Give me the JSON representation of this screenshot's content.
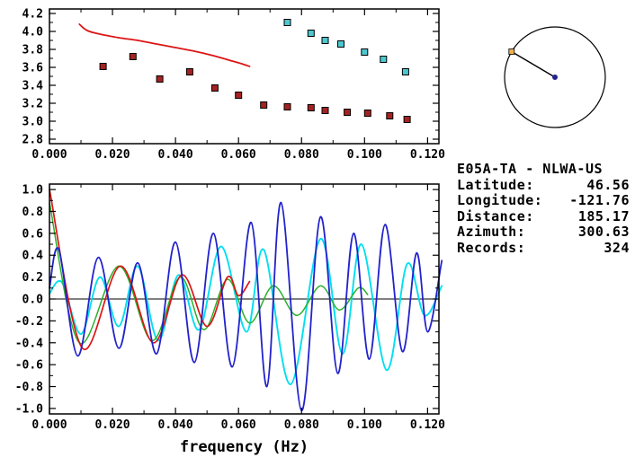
{
  "colors": {
    "red": "#dd1515",
    "maroon": "#a42222",
    "teal": "#4cc8cf",
    "blue": "#2222cc",
    "cyan": "#00dff0",
    "green": "#2ab02a",
    "orange": "#eeb04e",
    "navy": "#24248c",
    "black": "#000000"
  },
  "station_info": {
    "title": "E05A-TA - NLWA-US",
    "rows": [
      {
        "label": "Latitude:",
        "value": "46.56"
      },
      {
        "label": "Longitude:",
        "value": "-121.76"
      },
      {
        "label": "Distance:",
        "value": "185.17"
      },
      {
        "label": "Azimuth:",
        "value": "300.63"
      },
      {
        "label": "Records:",
        "value": "324"
      }
    ]
  },
  "chart_data": [
    {
      "id": "dispersion",
      "type": "scatter",
      "title": "",
      "xlabel": "",
      "ylabel": "",
      "xlim": [
        0,
        0.1236
      ],
      "ylim": [
        2.75,
        4.25
      ],
      "grid": false,
      "xticks": {
        "values": [
          0,
          0.02,
          0.04,
          0.06,
          0.08,
          0.1,
          0.12
        ],
        "labels": [
          "0.000",
          "0.020",
          "0.040",
          "0.060",
          "0.080",
          "0.100",
          "0.120"
        ]
      },
      "yticks": {
        "values": [
          2.8,
          3.0,
          3.2,
          3.4,
          3.6,
          3.8,
          4.0,
          4.2
        ],
        "labels": [
          "2.8",
          "3.0",
          "3.2",
          "3.4",
          "3.6",
          "3.8",
          "4.0",
          "4.2"
        ]
      },
      "series": [
        {
          "name": "reference-curve",
          "type": "line",
          "color_key": "red",
          "width": 1.8,
          "points": [
            [
              0.0095,
              4.08
            ],
            [
              0.012,
              4.01
            ],
            [
              0.016,
              3.97
            ],
            [
              0.022,
              3.93
            ],
            [
              0.028,
              3.9
            ],
            [
              0.034,
              3.86
            ],
            [
              0.04,
              3.82
            ],
            [
              0.046,
              3.78
            ],
            [
              0.052,
              3.73
            ],
            [
              0.057,
              3.68
            ],
            [
              0.061,
              3.64
            ],
            [
              0.0635,
              3.61
            ]
          ]
        },
        {
          "name": "group-velocity-points",
          "type": "scatter",
          "color_key": "maroon",
          "points": [
            [
              0.017,
              3.61
            ],
            [
              0.0265,
              3.72
            ],
            [
              0.035,
              3.47
            ],
            [
              0.0445,
              3.55
            ],
            [
              0.0525,
              3.37
            ],
            [
              0.06,
              3.29
            ],
            [
              0.068,
              3.18
            ],
            [
              0.0755,
              3.16
            ],
            [
              0.083,
              3.15
            ],
            [
              0.0875,
              3.12
            ],
            [
              0.0945,
              3.1
            ],
            [
              0.101,
              3.09
            ],
            [
              0.108,
              3.06
            ],
            [
              0.1135,
              3.02
            ]
          ]
        },
        {
          "name": "phase-velocity-points",
          "type": "scatter",
          "color_key": "teal",
          "points": [
            [
              0.0755,
              4.1
            ],
            [
              0.083,
              3.98
            ],
            [
              0.0875,
              3.9
            ],
            [
              0.0925,
              3.86
            ],
            [
              0.1,
              3.77
            ],
            [
              0.106,
              3.69
            ],
            [
              0.113,
              3.55
            ]
          ]
        }
      ]
    },
    {
      "id": "waveforms",
      "type": "line",
      "title": "",
      "xlabel": "frequency (Hz)",
      "ylabel": "",
      "xlim": [
        0,
        0.1236
      ],
      "ylim": [
        -1.05,
        1.05
      ],
      "grid": false,
      "xticks": {
        "values": [
          0,
          0.02,
          0.04,
          0.06,
          0.08,
          0.1,
          0.12
        ],
        "labels": [
          "0.000",
          "0.020",
          "0.040",
          "0.060",
          "0.080",
          "0.100",
          "0.120"
        ]
      },
      "yticks": {
        "values": [
          -1.0,
          -0.8,
          -0.6,
          -0.4,
          -0.2,
          0.0,
          0.2,
          0.4,
          0.6,
          0.8,
          1.0
        ],
        "labels": [
          "-1.0",
          "-0.8",
          "-0.6",
          "-0.4",
          "-0.2",
          "0.0",
          "0.2",
          "0.4",
          "0.6",
          "0.8",
          "1.0"
        ]
      },
      "series": [
        {
          "name": "zero-line",
          "type": "line",
          "color_key": "black",
          "width": 1.1,
          "smooth": false,
          "points": [
            [
              0,
              0
            ],
            [
              0.1236,
              0
            ]
          ]
        },
        {
          "name": "cyan-trace",
          "type": "line",
          "color_key": "cyan",
          "width": 1.9,
          "points": [
            [
              0,
              0.05
            ],
            [
              0.004,
              0.15
            ],
            [
              0.01,
              -0.32
            ],
            [
              0.016,
              0.2
            ],
            [
              0.022,
              -0.25
            ],
            [
              0.028,
              0.3
            ],
            [
              0.0345,
              -0.38
            ],
            [
              0.041,
              0.22
            ],
            [
              0.0475,
              -0.28
            ],
            [
              0.0545,
              0.48
            ],
            [
              0.0625,
              -0.3
            ],
            [
              0.068,
              0.45
            ],
            [
              0.0765,
              -0.78
            ],
            [
              0.086,
              0.55
            ],
            [
              0.093,
              -0.5
            ],
            [
              0.099,
              0.5
            ],
            [
              0.107,
              -0.65
            ],
            [
              0.1135,
              0.32
            ],
            [
              0.119,
              -0.15
            ],
            [
              0.1245,
              0.12
            ]
          ]
        },
        {
          "name": "green-trace",
          "type": "line",
          "color_key": "green",
          "width": 1.5,
          "points": [
            [
              0,
              0.88
            ],
            [
              0.0095,
              -0.4
            ],
            [
              0.022,
              0.3
            ],
            [
              0.0325,
              -0.38
            ],
            [
              0.0415,
              0.2
            ],
            [
              0.049,
              -0.28
            ],
            [
              0.0565,
              0.18
            ],
            [
              0.0635,
              -0.22
            ],
            [
              0.071,
              0.12
            ],
            [
              0.0785,
              -0.15
            ],
            [
              0.086,
              0.12
            ],
            [
              0.092,
              -0.1
            ],
            [
              0.098,
              0.1
            ],
            [
              0.101,
              0.04
            ]
          ]
        },
        {
          "name": "red-trace",
          "type": "line",
          "color_key": "red",
          "width": 1.7,
          "points": [
            [
              0,
              1.0
            ],
            [
              0.0105,
              -0.45
            ],
            [
              0.0225,
              0.3
            ],
            [
              0.033,
              -0.4
            ],
            [
              0.042,
              0.22
            ],
            [
              0.05,
              -0.25
            ],
            [
              0.0565,
              0.2
            ],
            [
              0.06,
              0.03
            ],
            [
              0.0635,
              0.16
            ]
          ]
        },
        {
          "name": "blue-trace",
          "type": "line",
          "color_key": "blue",
          "width": 1.8,
          "points": [
            [
              0,
              0.1
            ],
            [
              0.003,
              0.45
            ],
            [
              0.009,
              -0.52
            ],
            [
              0.0155,
              0.38
            ],
            [
              0.022,
              -0.45
            ],
            [
              0.028,
              0.33
            ],
            [
              0.034,
              -0.5
            ],
            [
              0.04,
              0.52
            ],
            [
              0.046,
              -0.58
            ],
            [
              0.052,
              0.6
            ],
            [
              0.058,
              -0.62
            ],
            [
              0.064,
              0.7
            ],
            [
              0.069,
              -0.8
            ],
            [
              0.0735,
              0.88
            ],
            [
              0.08,
              -1.02
            ],
            [
              0.086,
              0.75
            ],
            [
              0.0915,
              -0.68
            ],
            [
              0.0965,
              0.6
            ],
            [
              0.1015,
              -0.55
            ],
            [
              0.1065,
              0.68
            ],
            [
              0.112,
              -0.48
            ],
            [
              0.1165,
              0.42
            ],
            [
              0.12,
              -0.3
            ],
            [
              0.1245,
              0.35
            ]
          ]
        }
      ]
    },
    {
      "id": "azimuth-map",
      "type": "polar",
      "azimuth_deg": 300.63,
      "center_marker": "navy-dot",
      "edge_marker": "orange-square"
    }
  ]
}
